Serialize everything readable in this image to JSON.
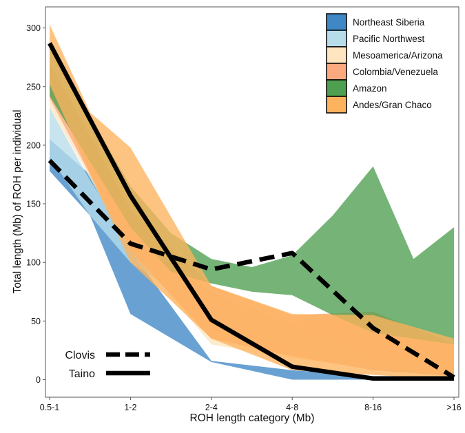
{
  "chart_data": {
    "type": "area",
    "xlabel": "ROH length category (Mb)",
    "ylabel": "Total length (Mb) of ROH per individual",
    "categories": [
      "0.5-1",
      "1-2",
      "2-4",
      "4-8",
      "8-16",
      ">16"
    ],
    "ylim": [
      -15,
      318
    ],
    "yticks": [
      0,
      50,
      100,
      150,
      200,
      250,
      300
    ],
    "grid": false,
    "legend_placement": "top-right",
    "bands": [
      {
        "name": "Northeast Siberia",
        "color": "#3f88c5",
        "upper": [
          [
            0,
            205
          ],
          [
            0.5,
            175
          ],
          [
            1,
            110
          ],
          [
            2,
            16
          ],
          [
            3,
            8
          ],
          [
            4,
            3
          ],
          [
            5,
            3
          ]
        ],
        "lower": [
          [
            0,
            178
          ],
          [
            0.5,
            140
          ],
          [
            1,
            56
          ],
          [
            2,
            15
          ],
          [
            3,
            0
          ],
          [
            4,
            0
          ],
          [
            5,
            0
          ]
        ]
      },
      {
        "name": "Pacific Northwest",
        "color": "#b7ddea",
        "upper": [
          [
            0,
            232
          ],
          [
            0.5,
            170
          ],
          [
            1,
            118
          ],
          [
            2,
            75
          ],
          [
            3,
            45
          ],
          [
            4,
            20
          ],
          [
            5,
            10
          ]
        ],
        "lower": [
          [
            0,
            190
          ],
          [
            0.5,
            140
          ],
          [
            1,
            100
          ],
          [
            2,
            55
          ],
          [
            3,
            25
          ],
          [
            4,
            8
          ],
          [
            5,
            3
          ]
        ]
      },
      {
        "name": "Mesoamerica/Arizona",
        "color": "#fde6c0",
        "upper": [
          [
            0,
            262
          ],
          [
            1,
            145
          ],
          [
            2,
            72
          ],
          [
            3,
            48
          ],
          [
            4,
            58
          ],
          [
            5,
            30
          ]
        ],
        "lower": [
          [
            0,
            232
          ],
          [
            1,
            112
          ],
          [
            2,
            30
          ],
          [
            3,
            18
          ],
          [
            4,
            10
          ],
          [
            5,
            5
          ]
        ]
      },
      {
        "name": "Colombia/Venezuela",
        "color": "#fca97f",
        "upper": [
          [
            0,
            270
          ],
          [
            1,
            145
          ],
          [
            2,
            80
          ],
          [
            3,
            55
          ],
          [
            4,
            58
          ],
          [
            5,
            30
          ]
        ],
        "lower": [
          [
            0,
            240
          ],
          [
            1,
            110
          ],
          [
            2,
            35
          ],
          [
            3,
            20
          ],
          [
            4,
            8
          ],
          [
            5,
            3
          ]
        ]
      },
      {
        "name": "Amazon",
        "color": "#4e9f50",
        "upper": [
          [
            0,
            282
          ],
          [
            0.5,
            225
          ],
          [
            1,
            165
          ],
          [
            1.5,
            125
          ],
          [
            2,
            103
          ],
          [
            2.5,
            96
          ],
          [
            3,
            106
          ],
          [
            3.5,
            140
          ],
          [
            4,
            182
          ],
          [
            4.5,
            103
          ],
          [
            5,
            130
          ]
        ],
        "lower": [
          [
            0,
            242
          ],
          [
            1,
            130
          ],
          [
            1.5,
            92
          ],
          [
            2,
            82
          ],
          [
            2.5,
            75
          ],
          [
            3,
            72
          ],
          [
            3.5,
            55
          ],
          [
            4,
            40
          ],
          [
            5,
            30
          ]
        ]
      },
      {
        "name": "Andes/Gran Chaco",
        "color": "#fdb35d",
        "upper": [
          [
            0,
            303
          ],
          [
            0.5,
            228
          ],
          [
            1,
            198
          ],
          [
            2,
            80
          ],
          [
            3,
            56
          ],
          [
            4,
            55
          ],
          [
            5,
            35
          ]
        ],
        "lower": [
          [
            0,
            252
          ],
          [
            1,
            100
          ],
          [
            2,
            35
          ],
          [
            3,
            8
          ],
          [
            4,
            4
          ],
          [
            5,
            0
          ]
        ]
      }
    ],
    "lines": [
      {
        "name": "Clovis",
        "style": "dashed",
        "values": [
          187,
          116,
          94,
          108,
          44,
          2
        ]
      },
      {
        "name": "Taino",
        "style": "solid",
        "values": [
          287,
          157,
          51,
          11,
          1,
          1
        ]
      }
    ]
  }
}
